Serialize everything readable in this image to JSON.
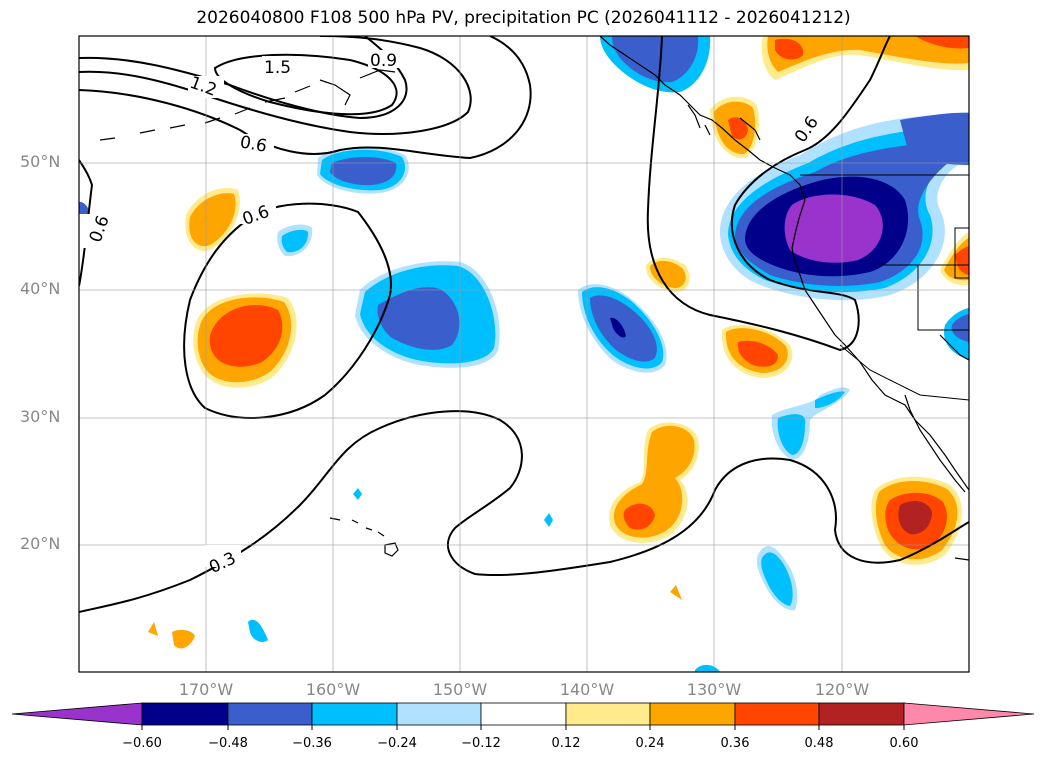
{
  "title": "2026040800 F108 500 hPa PV, precipitation PC (2026041112 - 2026041212)",
  "map": {
    "lat_labels": [
      "50°N",
      "40°N",
      "30°N",
      "20°N"
    ],
    "lon_labels": [
      "170°W",
      "160°W",
      "150°W",
      "140°W",
      "130°W",
      "120°W"
    ],
    "contour_labels": [
      "1.5",
      "1.2",
      "0.9",
      "0.6",
      "0.6",
      "0.6",
      "0.6",
      "0.3"
    ]
  },
  "colorbar": {
    "ticks": [
      "−0.60",
      "−0.48",
      "−0.36",
      "−0.24",
      "−0.12",
      "0.12",
      "0.24",
      "0.36",
      "0.48",
      "0.60"
    ],
    "colors": [
      "#9933cc",
      "#00008b",
      "#3a5fcd",
      "#00bfff",
      "#b0e2ff",
      "#ffffff",
      "#ffea8c",
      "#ffa500",
      "#ff4500",
      "#b22222",
      "#ff88aa"
    ]
  },
  "colors": {
    "purple": "#9933cc",
    "navy": "#00008b",
    "blue": "#3a5fcd",
    "cyan": "#00bfff",
    "lightblue": "#b0e2ff",
    "yellow": "#ffea8c",
    "orange": "#ffa500",
    "redorange": "#ff4500",
    "darkred": "#b22222"
  }
}
